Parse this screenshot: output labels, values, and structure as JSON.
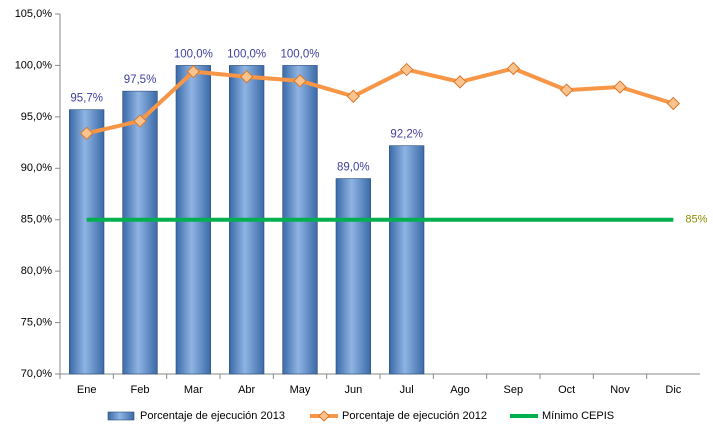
{
  "chart_data": {
    "type": "bar-line",
    "categories": [
      "Ene",
      "Feb",
      "Mar",
      "Abr",
      "May",
      "Jun",
      "Jul",
      "Ago",
      "Sep",
      "Oct",
      "Nov",
      "Dic"
    ],
    "series": [
      {
        "name": "Porcentaje de ejecución 2013",
        "type": "bar",
        "color": "#4f81bd",
        "values": [
          95.7,
          97.5,
          100,
          100,
          100,
          89,
          92.2,
          null,
          null,
          null,
          null,
          null
        ],
        "value_labels": [
          "95,7%",
          "97,5%",
          "100,0%",
          "100,0%",
          "100,0%",
          "89,0%",
          "92,2%",
          null,
          null,
          null,
          null,
          null
        ]
      },
      {
        "name": "Porcentaje de ejecución 2012",
        "type": "line",
        "color": "#f79646",
        "marker": "diamond",
        "values": [
          93.4,
          94.6,
          99.4,
          98.9,
          98.5,
          97.0,
          99.6,
          98.4,
          99.7,
          97.6,
          97.9,
          96.3
        ]
      },
      {
        "name": "Mínimo CEPIS",
        "type": "line",
        "color": "#00b050",
        "values": [
          85,
          85,
          85,
          85,
          85,
          85,
          85,
          85,
          85,
          85,
          85,
          85
        ],
        "value_labels": [
          null,
          null,
          null,
          null,
          null,
          null,
          null,
          null,
          null,
          null,
          null,
          "85%"
        ]
      }
    ],
    "ylim": [
      70,
      105
    ],
    "yticks": [
      {
        "value": 70,
        "label": "70,0%"
      },
      {
        "value": 75,
        "label": "75,0%"
      },
      {
        "value": 80,
        "label": "80,0%"
      },
      {
        "value": 85,
        "label": "85,0%"
      },
      {
        "value": 90,
        "label": "90,0%"
      },
      {
        "value": 95,
        "label": "95,0%"
      },
      {
        "value": 100,
        "label": "100,0%"
      },
      {
        "value": 105,
        "label": "105,0%"
      }
    ],
    "legend": "bottom"
  }
}
